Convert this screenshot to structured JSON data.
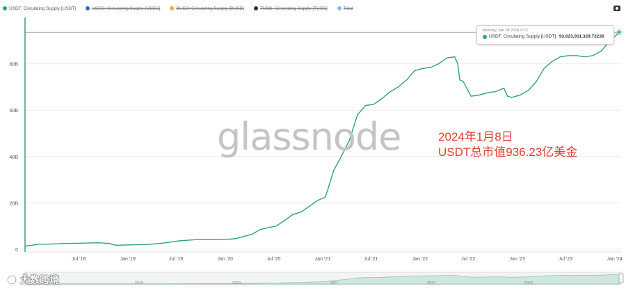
{
  "legend": [
    {
      "label": "USDT: Circulating Supply [USDT]",
      "color": "#2ea36e",
      "active": true
    },
    {
      "label": "USDC: Circulating Supply [USDC]",
      "color": "#2f6fb5",
      "active": false
    },
    {
      "label": "BUSD: Circulating Supply [BUSD]",
      "color": "#e7b633",
      "active": false
    },
    {
      "label": "TUSD: Circulating Supply [TUSD]",
      "color": "#283461",
      "active": false
    },
    {
      "label": "Total",
      "color": "#8fb8d8",
      "active": false
    }
  ],
  "icons": {
    "camera": "camera-icon"
  },
  "tooltip": {
    "date": "Monday, Jan 08 2024 UTC",
    "series": "USDT: Circulating Supply [USDT]:",
    "value": "93,623,911,329.73236"
  },
  "annotation": {
    "line1": "2024年1月8日",
    "line2": "USDT总市值936.23亿美金"
  },
  "watermark": "glassnode",
  "brand": {
    "text": "大数跨境",
    "icon": "brand-logo-icon"
  },
  "chart_data": {
    "type": "line",
    "title": "",
    "xlabel": "",
    "ylabel": "",
    "color": "#2ea36e",
    "ylim": [
      0,
      100
    ],
    "y_unit": "B",
    "yticks": [
      0,
      20,
      40,
      60,
      80
    ],
    "ytick_labels": [
      "0",
      "20B",
      "40B",
      "60B",
      "80B"
    ],
    "xticks": [
      "Jul '18",
      "Jan '19",
      "Jul '19",
      "Jan '20",
      "Jul '20",
      "Jan '21",
      "Jul '21",
      "Jan '22",
      "Jul '22",
      "Jan '23",
      "Jul '23",
      "Jan '24"
    ],
    "x_range": [
      "2017-12-01",
      "2024-01-15"
    ],
    "reference_value": 93.62,
    "series": [
      {
        "name": "USDT: Circulating Supply [USDT]",
        "points": [
          [
            "2017-12-01",
            1.3
          ],
          [
            "2018-01-25",
            2.2
          ],
          [
            "2018-03-01",
            2.2
          ],
          [
            "2018-05-01",
            2.5
          ],
          [
            "2018-07-01",
            2.6
          ],
          [
            "2018-09-01",
            2.8
          ],
          [
            "2018-10-15",
            2.5
          ],
          [
            "2018-10-28",
            1.9
          ],
          [
            "2018-11-15",
            1.7
          ],
          [
            "2019-01-01",
            1.9
          ],
          [
            "2019-03-01",
            2.0
          ],
          [
            "2019-05-01",
            2.6
          ],
          [
            "2019-07-01",
            3.6
          ],
          [
            "2019-09-01",
            4.1
          ],
          [
            "2019-11-01",
            4.1
          ],
          [
            "2020-01-01",
            4.3
          ],
          [
            "2020-02-01",
            4.6
          ],
          [
            "2020-03-01",
            5.5
          ],
          [
            "2020-04-01",
            6.5
          ],
          [
            "2020-05-01",
            8.5
          ],
          [
            "2020-06-01",
            9.3
          ],
          [
            "2020-07-01",
            10.0
          ],
          [
            "2020-08-01",
            12.5
          ],
          [
            "2020-09-01",
            15.0
          ],
          [
            "2020-10-01",
            16.0
          ],
          [
            "2020-11-01",
            18.5
          ],
          [
            "2020-12-01",
            21.0
          ],
          [
            "2021-01-01",
            22.5
          ],
          [
            "2021-02-01",
            34.0
          ],
          [
            "2021-03-01",
            40.0
          ],
          [
            "2021-04-01",
            47.0
          ],
          [
            "2021-05-01",
            58.0
          ],
          [
            "2021-06-01",
            62.0
          ],
          [
            "2021-07-01",
            62.5
          ],
          [
            "2021-08-01",
            65.0
          ],
          [
            "2021-09-01",
            68.0
          ],
          [
            "2021-10-01",
            70.0
          ],
          [
            "2021-11-01",
            73.0
          ],
          [
            "2021-12-01",
            77.0
          ],
          [
            "2022-01-01",
            78.0
          ],
          [
            "2022-02-01",
            78.5
          ],
          [
            "2022-03-01",
            80.0
          ],
          [
            "2022-04-01",
            82.5
          ],
          [
            "2022-05-01",
            83.0
          ],
          [
            "2022-05-12",
            80.0
          ],
          [
            "2022-05-20",
            73.0
          ],
          [
            "2022-06-01",
            72.5
          ],
          [
            "2022-07-01",
            66.0
          ],
          [
            "2022-08-01",
            66.5
          ],
          [
            "2022-09-01",
            67.5
          ],
          [
            "2022-10-01",
            68.0
          ],
          [
            "2022-11-01",
            69.5
          ],
          [
            "2022-11-15",
            66.0
          ],
          [
            "2022-12-01",
            65.5
          ],
          [
            "2023-01-01",
            66.5
          ],
          [
            "2023-02-01",
            68.5
          ],
          [
            "2023-03-01",
            72.0
          ],
          [
            "2023-04-01",
            78.0
          ],
          [
            "2023-05-01",
            81.0
          ],
          [
            "2023-06-01",
            83.0
          ],
          [
            "2023-07-01",
            83.5
          ],
          [
            "2023-08-01",
            83.5
          ],
          [
            "2023-09-01",
            83.0
          ],
          [
            "2023-10-01",
            83.5
          ],
          [
            "2023-11-01",
            85.5
          ],
          [
            "2023-12-01",
            89.5
          ],
          [
            "2024-01-08",
            93.62
          ]
        ]
      }
    ],
    "navigator_labels": [
      "2019",
      "2020",
      "2021",
      "2022",
      "2023"
    ]
  }
}
